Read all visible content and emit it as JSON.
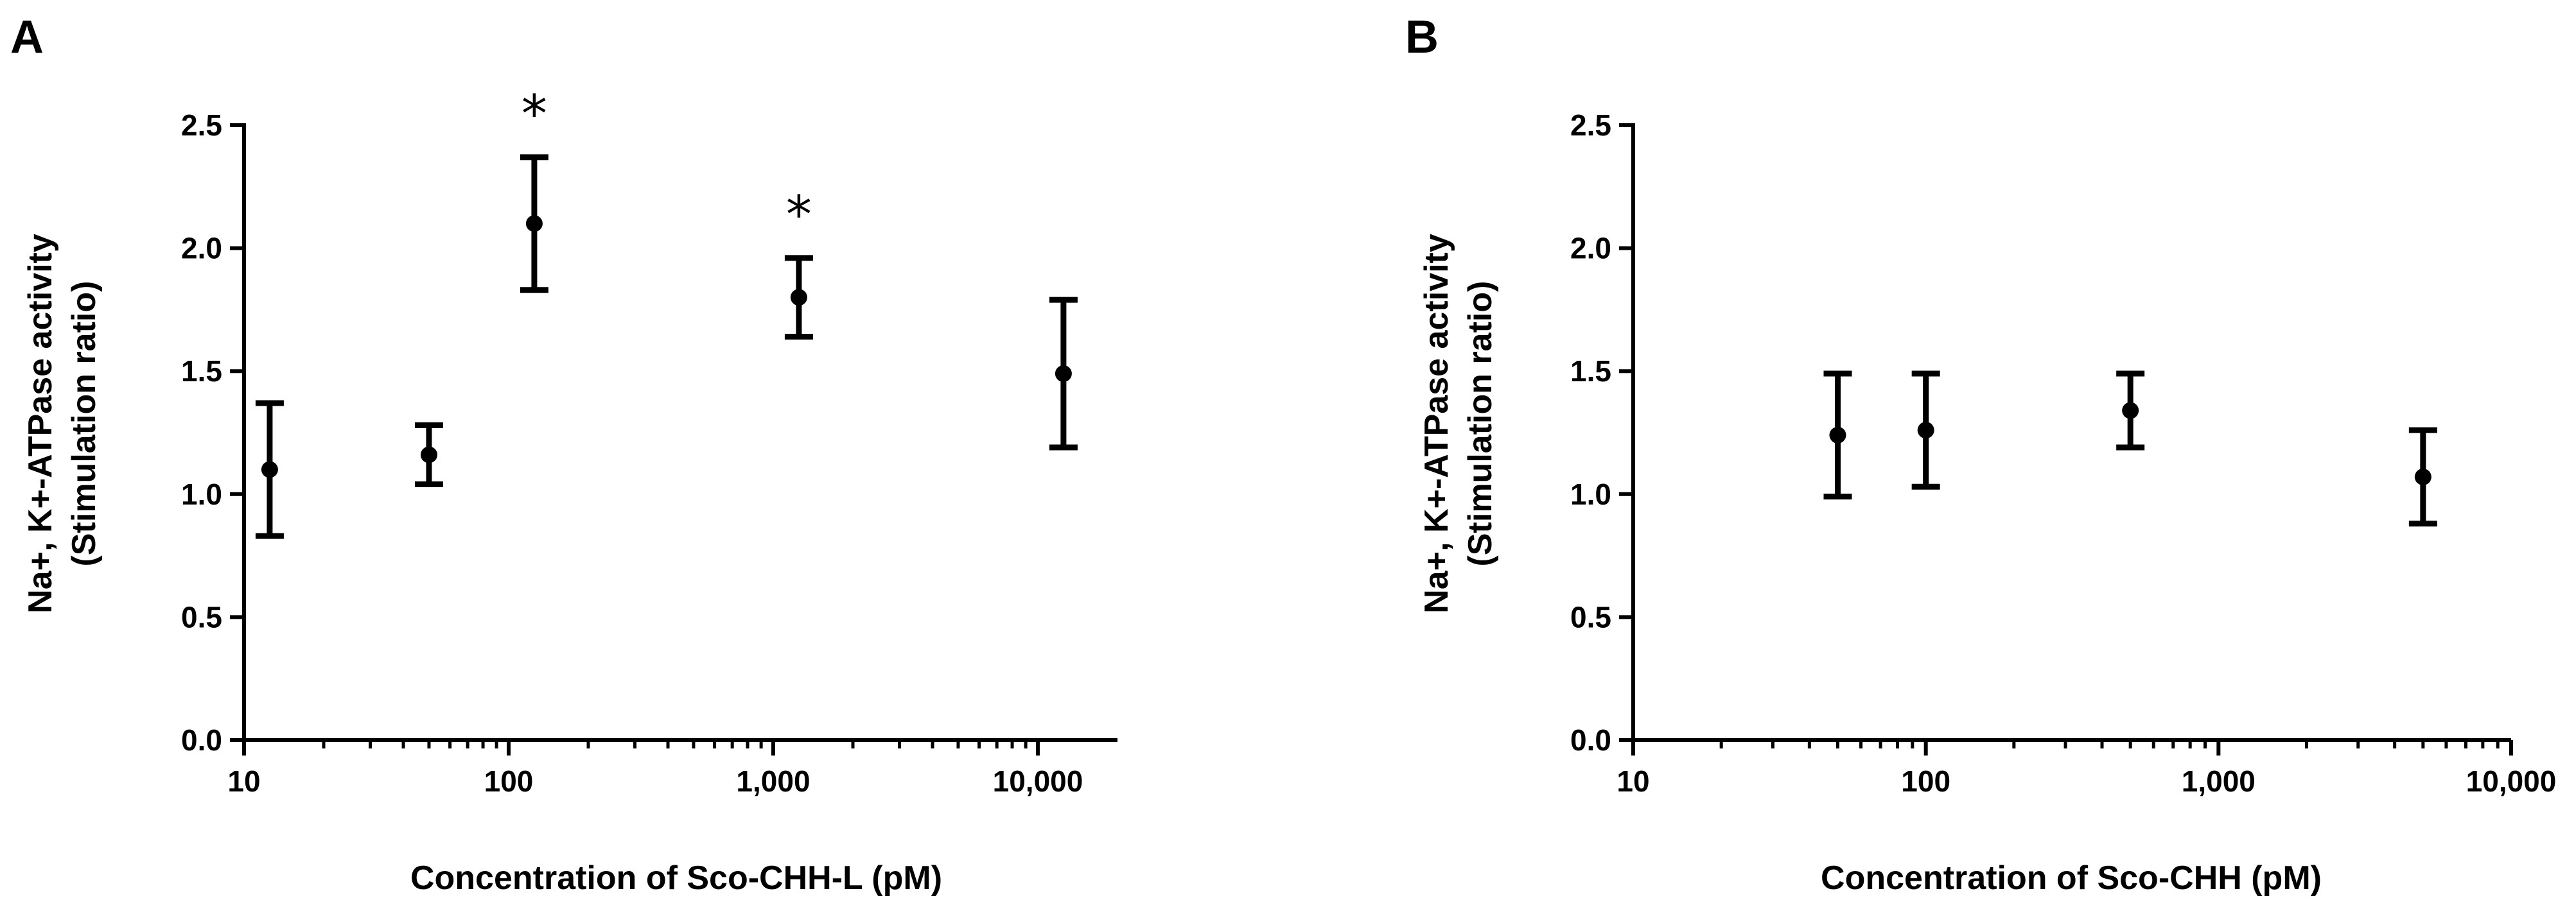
{
  "chart_data": [
    {
      "panel": "A",
      "type": "scatter",
      "title": "",
      "xlabel": "Concentration of Sco-CHH-L (pM)",
      "ylabel": [
        "Na+, K+-ATPase activity",
        "(Stimulation ratio)"
      ],
      "x_scale": "log",
      "xlim": [
        10,
        20000
      ],
      "ylim": [
        0,
        2.5
      ],
      "x_ticks": [
        10,
        100,
        1000,
        10000
      ],
      "x_tick_labels": [
        "10",
        "100",
        "1,000",
        "10,000"
      ],
      "y_ticks": [
        0,
        0.5,
        1.0,
        1.5,
        2.0,
        2.5
      ],
      "y_tick_labels": [
        "0.0",
        "0.5",
        "1.0",
        "1.5",
        "2.0",
        "2.5"
      ],
      "grid": false,
      "points": [
        {
          "x": 12.5,
          "y": 1.1,
          "err_low": 0.83,
          "err_high": 1.37,
          "annotation": ""
        },
        {
          "x": 50,
          "y": 1.16,
          "err_low": 1.04,
          "err_high": 1.28,
          "annotation": ""
        },
        {
          "x": 125,
          "y": 2.1,
          "err_low": 1.83,
          "err_high": 2.37,
          "annotation": "*"
        },
        {
          "x": 1250,
          "y": 1.8,
          "err_low": 1.64,
          "err_high": 1.96,
          "annotation": "*"
        },
        {
          "x": 12500,
          "y": 1.49,
          "err_low": 1.19,
          "err_high": 1.79,
          "annotation": ""
        }
      ]
    },
    {
      "panel": "B",
      "type": "scatter",
      "title": "",
      "xlabel": "Concentration of Sco-CHH (pM)",
      "ylabel": [
        "Na+, K+-ATPase activity",
        "(Stimulation ratio)"
      ],
      "x_scale": "log",
      "xlim": [
        10,
        10000
      ],
      "ylim": [
        0,
        2.5
      ],
      "x_ticks": [
        10,
        100,
        1000,
        10000
      ],
      "x_tick_labels": [
        "10",
        "100",
        "1,000",
        "10,000"
      ],
      "y_ticks": [
        0,
        0.5,
        1.0,
        1.5,
        2.0,
        2.5
      ],
      "y_tick_labels": [
        "0.0",
        "0.5",
        "1.0",
        "1.5",
        "2.0",
        "2.5"
      ],
      "grid": false,
      "points": [
        {
          "x": 50,
          "y": 1.24,
          "err_low": 0.99,
          "err_high": 1.49,
          "annotation": ""
        },
        {
          "x": 100,
          "y": 1.26,
          "err_low": 1.03,
          "err_high": 1.49,
          "annotation": ""
        },
        {
          "x": 500,
          "y": 1.34,
          "err_low": 1.19,
          "err_high": 1.49,
          "annotation": ""
        },
        {
          "x": 5000,
          "y": 1.07,
          "err_low": 0.88,
          "err_high": 1.26,
          "annotation": ""
        }
      ]
    }
  ]
}
